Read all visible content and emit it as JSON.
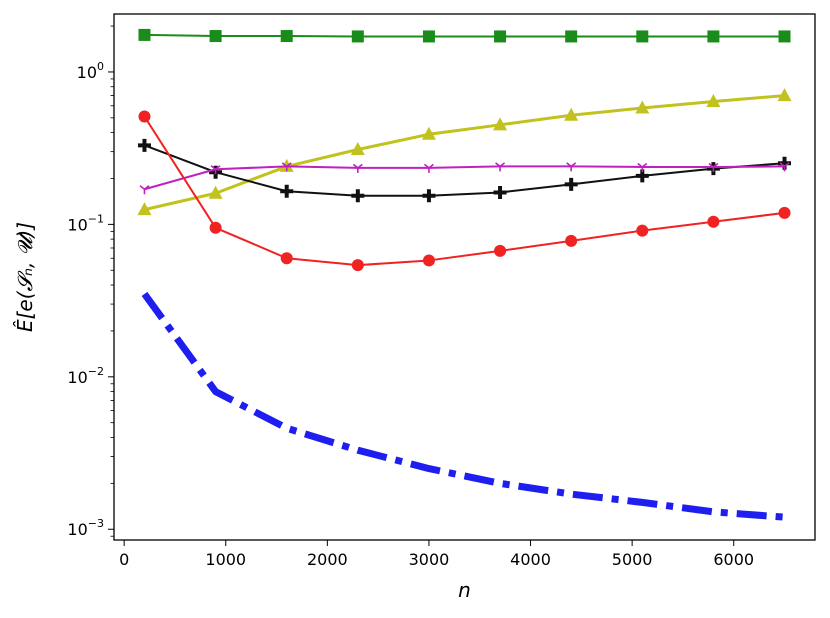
{
  "chart_data": {
    "type": "line",
    "xlabel": "n",
    "ylabel": "Ê[e(𝓢ₙ, 𝓤)]",
    "yscale": "log",
    "xlim": [
      -100,
      6800
    ],
    "ylim": [
      0.00085,
      2.4
    ],
    "grid": false,
    "legend": "none",
    "x": [
      200,
      900,
      1600,
      2300,
      3000,
      3700,
      4400,
      5100,
      5800,
      6500
    ],
    "x_ticks": [
      0,
      1000,
      2000,
      3000,
      4000,
      5000,
      6000
    ],
    "x_tick_labels": [
      "0",
      "1000",
      "2000",
      "3000",
      "4000",
      "5000",
      "6000"
    ],
    "y_ticks": [
      {
        "value": 1,
        "base": "10",
        "exp": "0"
      },
      {
        "value": 0.1,
        "base": "10",
        "exp": "−1"
      },
      {
        "value": 0.01,
        "base": "10",
        "exp": "−2"
      },
      {
        "value": 0.001,
        "base": "10",
        "exp": "−3"
      }
    ],
    "series": [
      {
        "color": "#1a8c1a",
        "marker": "square",
        "style": "solid",
        "width": 2,
        "values": [
          1.75,
          1.72,
          1.72,
          1.71,
          1.71,
          1.71,
          1.71,
          1.71,
          1.71,
          1.71
        ]
      },
      {
        "color": "#c2c21e",
        "marker": "triangle",
        "style": "solid",
        "width": 3,
        "values": [
          0.125,
          0.16,
          0.24,
          0.31,
          0.39,
          0.45,
          0.52,
          0.58,
          0.64,
          0.7
        ]
      },
      {
        "color": "#111111",
        "marker": "plus",
        "style": "solid",
        "width": 2,
        "values": [
          0.33,
          0.22,
          0.165,
          0.154,
          0.154,
          0.162,
          0.183,
          0.208,
          0.232,
          0.252
        ]
      },
      {
        "color": "#c020c0",
        "marker": "tri_down",
        "style": "solid",
        "width": 2,
        "values": [
          0.17,
          0.23,
          0.24,
          0.235,
          0.235,
          0.24,
          0.24,
          0.238,
          0.238,
          0.24
        ]
      },
      {
        "color": "#f02222",
        "marker": "circle",
        "style": "solid",
        "width": 2,
        "values": [
          0.51,
          0.095,
          0.06,
          0.054,
          0.058,
          0.067,
          0.078,
          0.091,
          0.104,
          0.119
        ]
      },
      {
        "color": "#1e1ef0",
        "marker": "none",
        "style": "dashdot",
        "width": 7,
        "values": [
          0.035,
          0.008,
          0.0046,
          0.0033,
          0.0025,
          0.002,
          0.0017,
          0.0015,
          0.0013,
          0.0012
        ]
      }
    ]
  }
}
